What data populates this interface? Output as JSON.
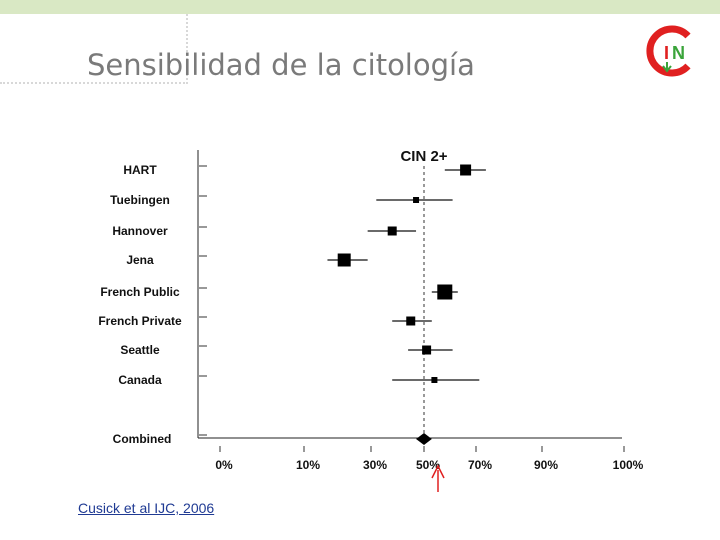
{
  "slide": {
    "title": "Sensibilidad de la citología",
    "citation": "Cusick et al IJC, 2006"
  },
  "colors": {
    "top_bar": "#d9e8c4",
    "logo_red": "#e02020",
    "logo_green": "#3aa43a",
    "annotation_arrow": "#e02020"
  },
  "chart_data": {
    "type": "forest",
    "title": "CIN 2+",
    "x_ticks": [
      "0%",
      "10%",
      "30%",
      "50%",
      "70%",
      "90%",
      "100%"
    ],
    "x_tick_values": [
      0,
      10,
      30,
      50,
      70,
      90,
      100
    ],
    "reference_line": 50,
    "studies": [
      {
        "name": "HART",
        "estimate": 66,
        "low": 58,
        "high": 73,
        "weight": 3
      },
      {
        "name": "Tuebingen",
        "estimate": 47,
        "low": 32,
        "high": 61,
        "weight": 1
      },
      {
        "name": "Hannover",
        "estimate": 38,
        "low": 29,
        "high": 47,
        "weight": 2
      },
      {
        "name": "Jena",
        "estimate": 22,
        "low": 17,
        "high": 29,
        "weight": 4
      },
      {
        "name": "French Public",
        "estimate": 58,
        "low": 53,
        "high": 63,
        "weight": 5
      },
      {
        "name": "French Private",
        "estimate": 45,
        "low": 38,
        "high": 53,
        "weight": 2
      },
      {
        "name": "Seattle",
        "estimate": 51,
        "low": 44,
        "high": 61,
        "weight": 2
      },
      {
        "name": "Canada",
        "estimate": 54,
        "low": 38,
        "high": 71,
        "weight": 1
      }
    ],
    "combined": {
      "name": "Combined",
      "estimate": 50,
      "low": 47,
      "high": 53
    }
  }
}
